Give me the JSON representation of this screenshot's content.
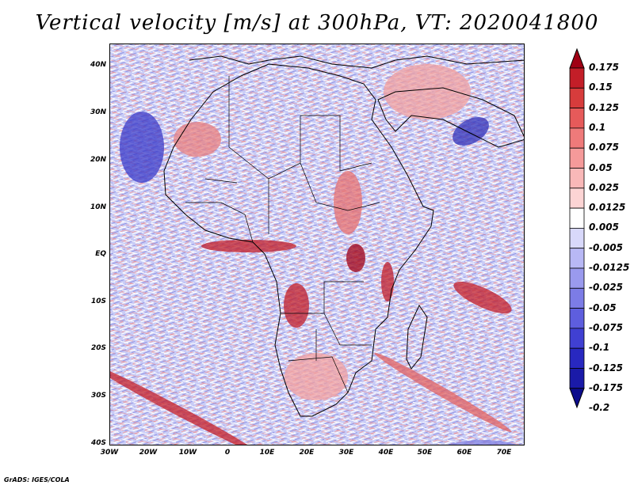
{
  "title": "Vertical velocity [m/s] at 300hPa, VT: 2020041800",
  "credit": "GrADS: IGES/COLA",
  "map": {
    "lat_labels": [
      "40N",
      "30N",
      "20N",
      "10N",
      "EQ",
      "10S",
      "20S",
      "30S",
      "40S"
    ],
    "lon_labels": [
      "30W",
      "20W",
      "10W",
      "0",
      "10E",
      "20E",
      "30E",
      "40E",
      "50E",
      "60E",
      "70E"
    ],
    "lat_range": [
      -40,
      45
    ],
    "lon_range": [
      -30,
      75
    ]
  },
  "colorbar": {
    "labels": [
      "0.175",
      "0.15",
      "0.125",
      "0.1",
      "0.075",
      "0.05",
      "0.025",
      "0.0125",
      "0.005",
      "-0.005",
      "-0.0125",
      "-0.025",
      "-0.05",
      "-0.075",
      "-0.1",
      "-0.125",
      "-0.175",
      "-0.2"
    ],
    "colors": [
      "#a00014",
      "#c31e28",
      "#d73c3c",
      "#e65a5a",
      "#ef7a7a",
      "#f59a9a",
      "#f9b8b8",
      "#fcd4d4",
      "#ffffff",
      "#d8d8fa",
      "#b8b8f5",
      "#9a9aee",
      "#7c7ce6",
      "#5e5ede",
      "#4040d2",
      "#2828c0",
      "#1a1aa8",
      "#0c0c8c"
    ]
  }
}
